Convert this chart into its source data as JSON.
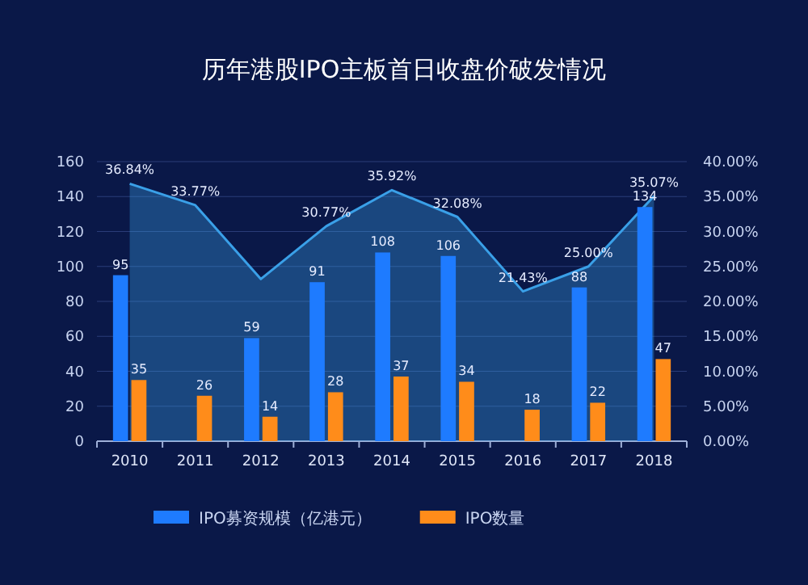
{
  "chart_data": {
    "type": "bar",
    "title": "历年港股IPO主板首日收盘价破发情况",
    "categories": [
      "2010",
      "2011",
      "2012",
      "2013",
      "2014",
      "2015",
      "2016",
      "2017",
      "2018"
    ],
    "series": [
      {
        "type": "area",
        "axis": "y2",
        "color": "#3aa0e8",
        "values": [
          36.84,
          33.77,
          23.2,
          30.77,
          35.92,
          32.08,
          21.43,
          25.0,
          35.07
        ],
        "value_labels": [
          "36.84%",
          "33.77%",
          null,
          "30.77%",
          "35.92%",
          "32.08%",
          "21.43%",
          "25.00%",
          "35.07%"
        ]
      },
      {
        "name": "IPO募资规模（亿港元）",
        "color": "#1e7bff",
        "values": [
          95,
          null,
          59,
          91,
          108,
          106,
          null,
          88,
          134
        ],
        "value_labels": [
          "95",
          null,
          "59",
          "91",
          "108",
          "106",
          null,
          "88",
          "134"
        ]
      },
      {
        "name": "IPO数量",
        "color": "#ff8c1a",
        "values": [
          35,
          26,
          14,
          28,
          37,
          34,
          18,
          22,
          47
        ],
        "value_labels": [
          "35",
          "26",
          "14",
          "28",
          "37",
          "34",
          "18",
          "22",
          "47"
        ]
      }
    ],
    "ylim": [
      0,
      160
    ],
    "yticks": [
      0,
      20,
      40,
      60,
      80,
      100,
      120,
      140,
      160
    ],
    "y2lim": [
      0,
      40
    ],
    "y2ticks": [
      {
        "value": 0,
        "label": "0.00%"
      },
      {
        "value": 5,
        "label": "5.00%"
      },
      {
        "value": 10,
        "label": "10.00%"
      },
      {
        "value": 15,
        "label": "15.00%"
      },
      {
        "value": 20,
        "label": "20.00%"
      },
      {
        "value": 25,
        "label": "25.00%"
      },
      {
        "value": 30,
        "label": "30.00%"
      },
      {
        "value": 35,
        "label": "35.00%"
      },
      {
        "value": 40,
        "label": "40.00%"
      }
    ],
    "grid": "y",
    "legend": "bottom"
  }
}
